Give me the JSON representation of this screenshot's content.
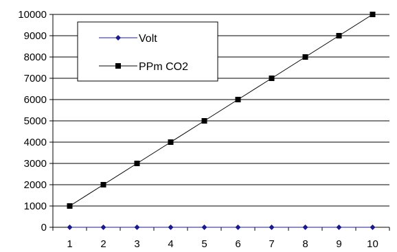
{
  "chart_data": {
    "type": "line",
    "title": "",
    "xlabel": "",
    "ylabel": "",
    "categories": [
      "1",
      "2",
      "3",
      "4",
      "5",
      "6",
      "7",
      "8",
      "9",
      "10"
    ],
    "ylim": [
      0,
      10000
    ],
    "y_ticks": [
      "0",
      "1000",
      "2000",
      "3000",
      "4000",
      "5000",
      "6000",
      "7000",
      "8000",
      "9000",
      "10000"
    ],
    "grid": "horizontal",
    "legend_position": "top-left",
    "series": [
      {
        "name": "Volt",
        "values": [
          0,
          0,
          0,
          0,
          0,
          0,
          0,
          0,
          0,
          0
        ],
        "color": "#1a1a8c",
        "marker": "diamond"
      },
      {
        "name": "PPm CO2",
        "values": [
          1000,
          2000,
          3000,
          4000,
          5000,
          6000,
          7000,
          8000,
          9000,
          10000
        ],
        "color": "#000000",
        "marker": "square"
      }
    ]
  }
}
